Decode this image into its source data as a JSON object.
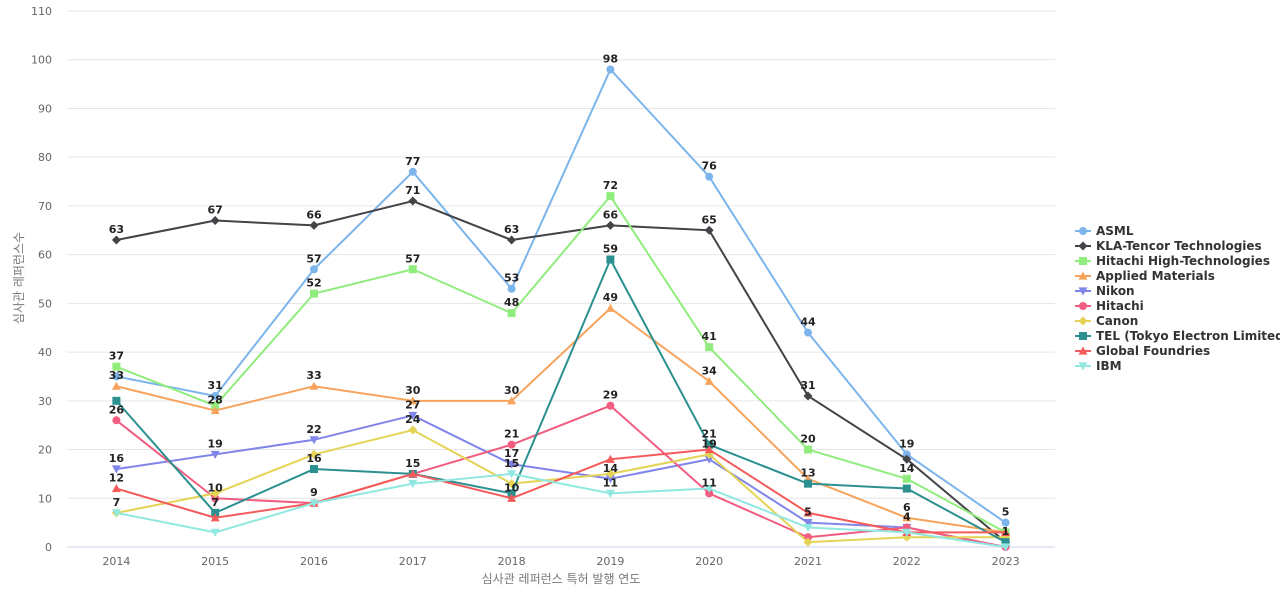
{
  "chart_data": {
    "type": "line",
    "title": "",
    "xlabel": "심사관 레퍼런스 특허 발행 연도",
    "ylabel": "심사관 레퍼런스수",
    "categories": [
      "2014",
      "2015",
      "2016",
      "2017",
      "2018",
      "2019",
      "2020",
      "2021",
      "2022",
      "2023"
    ],
    "ylim": [
      0,
      110
    ],
    "yticks": [
      0,
      10,
      20,
      30,
      40,
      50,
      60,
      70,
      80,
      90,
      100,
      110
    ],
    "grid": true,
    "legend_position": "right",
    "series": [
      {
        "name": "ASML",
        "color": "#7cb5ec",
        "marker": "circle",
        "values": [
          35,
          31,
          57,
          77,
          53,
          98,
          76,
          44,
          19,
          5
        ]
      },
      {
        "name": "KLA-Tencor Technologies",
        "color": "#434348",
        "marker": "diamond",
        "values": [
          63,
          67,
          66,
          71,
          63,
          66,
          65,
          31,
          18,
          1
        ]
      },
      {
        "name": "Hitachi High-Technologies",
        "color": "#90ed7d",
        "marker": "square",
        "values": [
          37,
          29,
          52,
          57,
          48,
          72,
          41,
          20,
          14,
          3
        ]
      },
      {
        "name": "Applied Materials",
        "color": "#f7a35c",
        "marker": "triangle",
        "values": [
          33,
          28,
          33,
          30,
          30,
          49,
          34,
          14,
          6,
          3
        ]
      },
      {
        "name": "Nikon",
        "color": "#8085e9",
        "marker": "triangle-down",
        "values": [
          16,
          19,
          22,
          27,
          17,
          14,
          18,
          5,
          4,
          0
        ]
      },
      {
        "name": "Hitachi",
        "color": "#f15c80",
        "marker": "circle",
        "values": [
          26,
          10,
          9,
          15,
          21,
          29,
          11,
          2,
          4,
          0
        ]
      },
      {
        "name": "Canon",
        "color": "#e4d354",
        "marker": "diamond",
        "values": [
          7,
          11,
          19,
          24,
          13,
          15,
          19,
          1,
          2,
          2
        ]
      },
      {
        "name": "TEL (Tokyo Electron Limited)",
        "color": "#2b908f",
        "marker": "square",
        "values": [
          30,
          7,
          16,
          15,
          11,
          59,
          21,
          13,
          12,
          1
        ]
      },
      {
        "name": "Global Foundries",
        "color": "#f45b5b",
        "marker": "triangle",
        "values": [
          12,
          6,
          9,
          15,
          10,
          18,
          20,
          7,
          3,
          3
        ]
      },
      {
        "name": "IBM",
        "color": "#91e8e1",
        "marker": "triangle-down",
        "values": [
          7,
          3,
          9,
          13,
          15,
          11,
          12,
          4,
          3,
          0
        ]
      }
    ],
    "data_labels": [
      {
        "series": 0,
        "points": [
          1,
          2,
          3,
          4,
          5,
          6,
          7,
          8,
          9
        ]
      },
      {
        "series": 1,
        "points": [
          0,
          1,
          2,
          3,
          4,
          5,
          6,
          7
        ]
      },
      {
        "series": 2,
        "points": [
          0,
          2,
          3,
          4,
          5,
          6,
          7,
          8
        ]
      },
      {
        "series": 3,
        "points": [
          0,
          1,
          2,
          3,
          4,
          5,
          6,
          8
        ]
      },
      {
        "series": 4,
        "points": [
          0,
          1,
          2,
          3,
          4,
          5,
          7
        ]
      },
      {
        "series": 5,
        "points": [
          0,
          1,
          4,
          5,
          6,
          8
        ]
      },
      {
        "series": 6,
        "points": [
          0,
          3,
          6
        ]
      },
      {
        "series": 7,
        "points": [
          1,
          2,
          5,
          6,
          7,
          9
        ]
      },
      {
        "series": 8,
        "points": [
          0,
          2,
          3,
          4
        ]
      },
      {
        "series": 9,
        "points": [
          4,
          5
        ]
      }
    ]
  }
}
